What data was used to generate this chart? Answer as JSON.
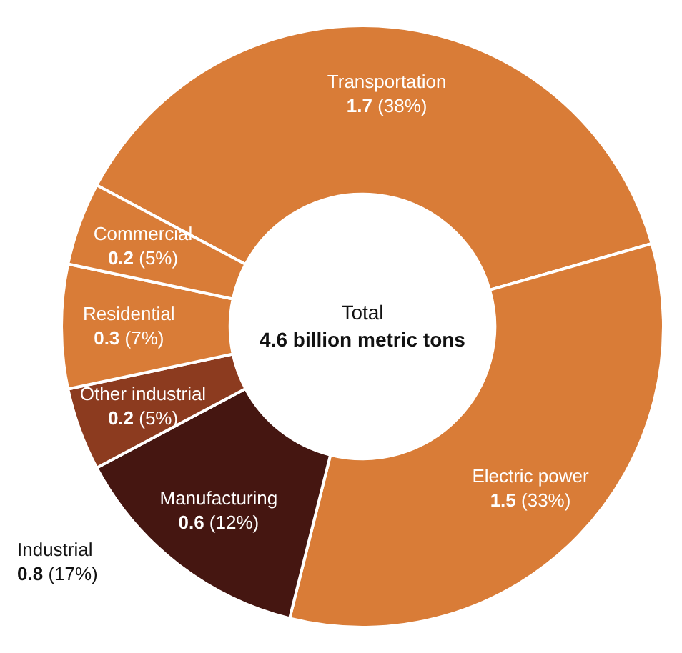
{
  "chart_data": {
    "type": "donut",
    "title": "Total",
    "subtitle": "4.6 billion metric tons",
    "categories": [
      "Transportation",
      "Electric power",
      "Manufacturing",
      "Other industrial",
      "Residential",
      "Commercial"
    ],
    "values": [
      1.7,
      1.5,
      0.6,
      0.2,
      0.3,
      0.2
    ],
    "value_labels": [
      "1.7 (38%)",
      "1.5 (33%)",
      "0.6 (12%)",
      "0.2 (5%)",
      "0.3 (7%)",
      "0.2 (5%)"
    ],
    "colors": [
      "#d97c37",
      "#d97c37",
      "#451611",
      "#8c3b1f",
      "#d97c37",
      "#d97c37"
    ],
    "annotations": [
      "Industrial",
      "0.8 (17%)"
    ],
    "legend": false
  }
}
